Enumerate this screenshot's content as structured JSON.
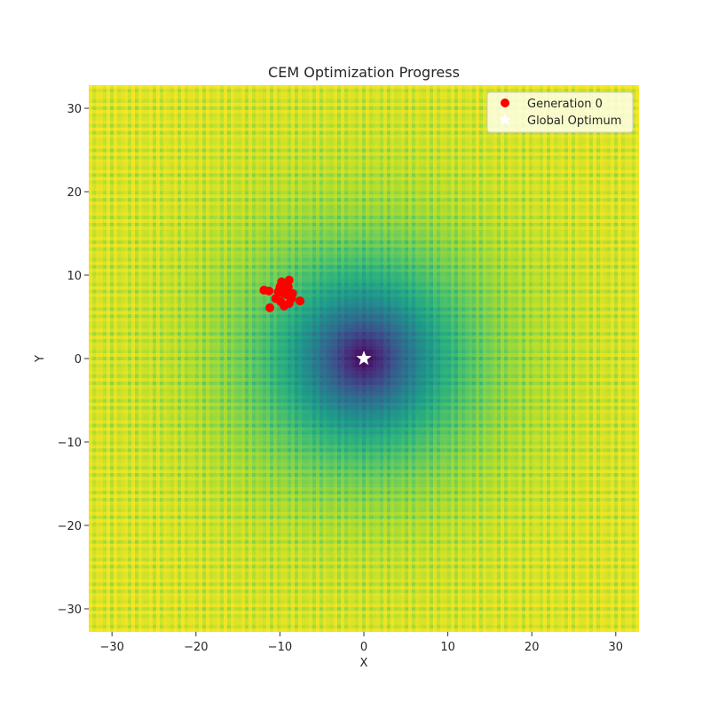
{
  "chart_data": {
    "type": "scatter",
    "title": "CEM Optimization Progress",
    "xlabel": "X",
    "ylabel": "Y",
    "xlim": [
      -32.768,
      32.768
    ],
    "ylim": [
      -32.768,
      32.768
    ],
    "xticks": [
      -30,
      -20,
      -10,
      0,
      10,
      20,
      30
    ],
    "yticks": [
      -30,
      -20,
      -10,
      0,
      10,
      20,
      30
    ],
    "tick_labels_x": [
      "−30",
      "−20",
      "−10",
      "0",
      "10",
      "20",
      "30"
    ],
    "tick_labels_y": [
      "−30",
      "−20",
      "−10",
      "0",
      "10",
      "20",
      "30"
    ],
    "background": "filled contour of the Ackley function (viridis colormap), minimum at (0, 0)",
    "colormap": "viridis",
    "grid": false,
    "legend_position": "top-right",
    "series": [
      {
        "name": "Generation 0",
        "marker": "circle",
        "color": "#ff0000",
        "points": [
          [
            -11.9,
            8.2
          ],
          [
            -11.3,
            8.1
          ],
          [
            -11.2,
            6.1
          ],
          [
            -10.5,
            7.2
          ],
          [
            -10.2,
            8.0
          ],
          [
            -10.0,
            8.6
          ],
          [
            -9.8,
            9.2
          ],
          [
            -9.6,
            7.8
          ],
          [
            -9.4,
            8.3
          ],
          [
            -9.5,
            6.3
          ],
          [
            -9.9,
            6.8
          ],
          [
            -9.1,
            7.6
          ],
          [
            -9.0,
            8.6
          ],
          [
            -8.9,
            6.6
          ],
          [
            -8.6,
            7.2
          ],
          [
            -8.5,
            7.8
          ],
          [
            -8.9,
            9.4
          ],
          [
            -7.6,
            6.9
          ]
        ]
      },
      {
        "name": "Global Optimum",
        "marker": "star",
        "color": "#ffffff",
        "points": [
          [
            0,
            0
          ]
        ]
      }
    ]
  }
}
